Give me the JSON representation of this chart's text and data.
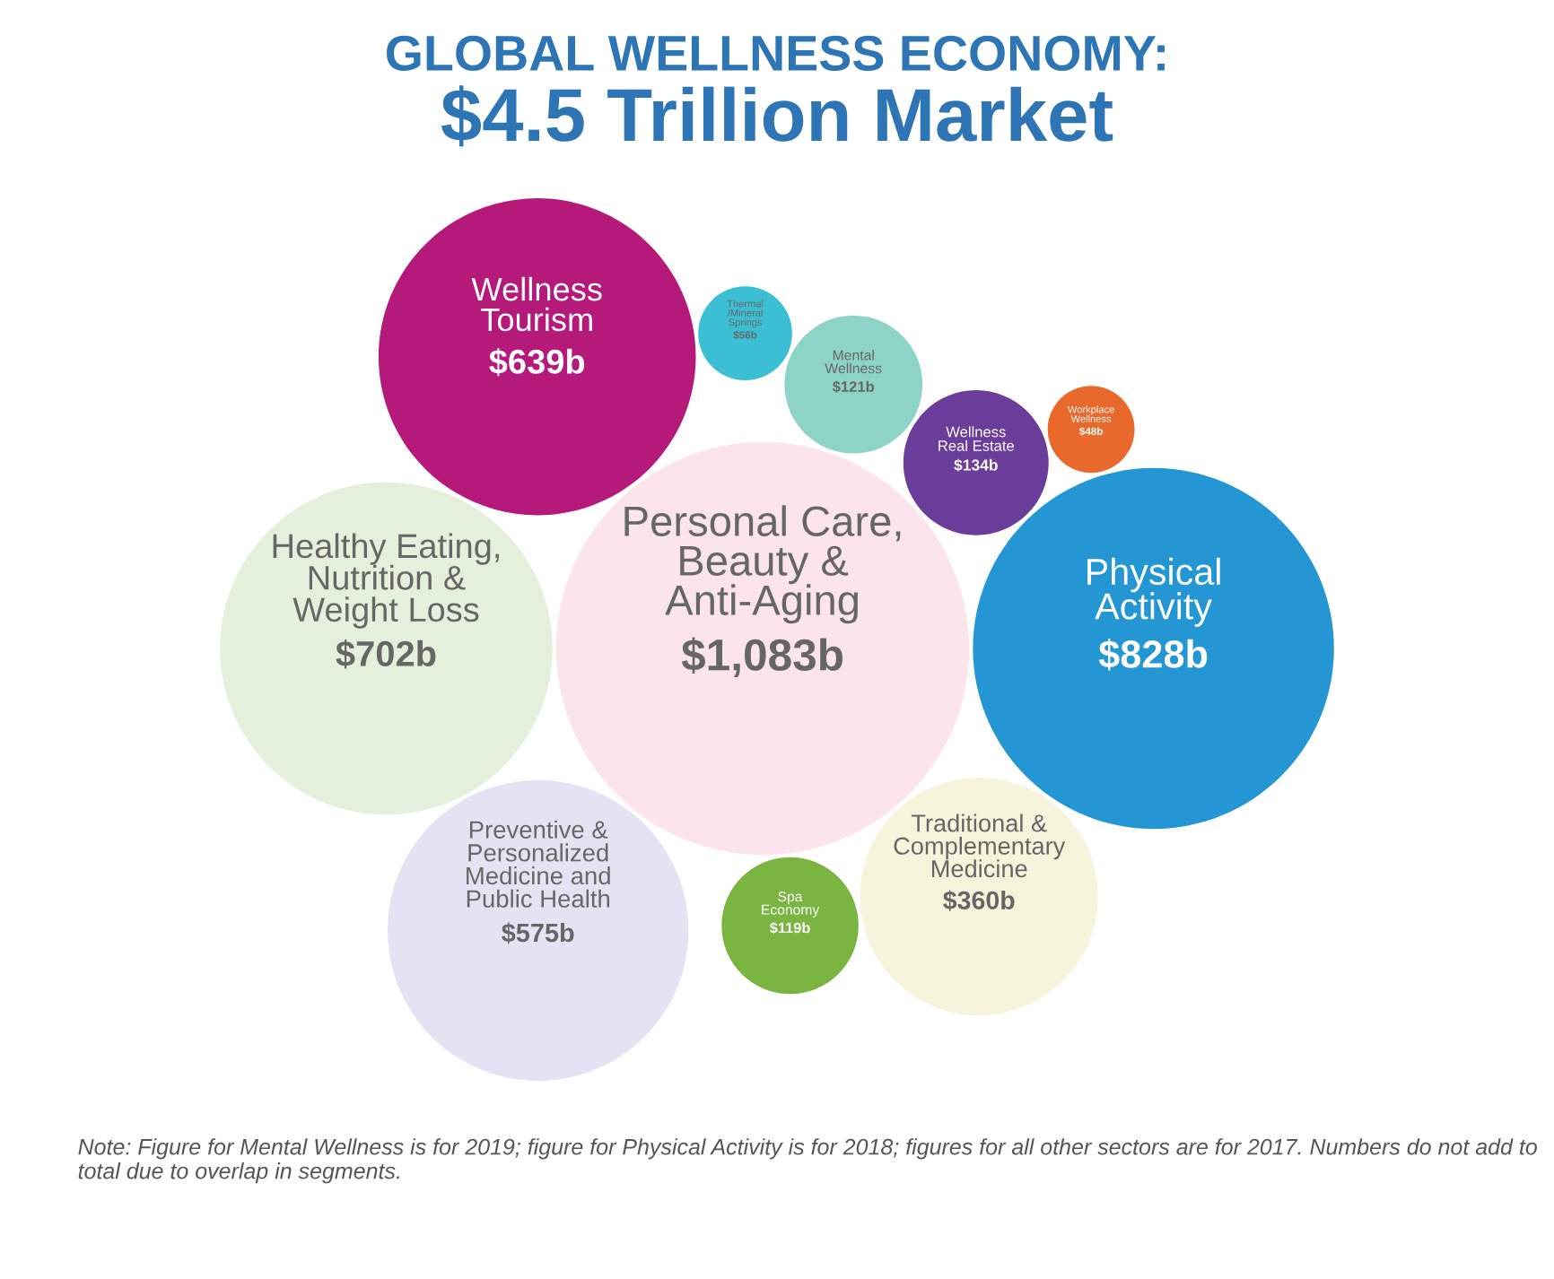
{
  "chart_data": {
    "type": "other",
    "title": "GLOBAL WELLNESS ECONOMY:",
    "subtitle": "$4.5 Trillion Market",
    "categories": [
      "Mental\nWellness",
      "Traditional &\nComplementary\nMedicine",
      "Wellness\nReal Estate",
      "Wellness\nTourism",
      "Personal Care,\nBeauty &\nAnti-Aging",
      "Preventive &\nPersonalized\nMedicine and\nPublic Health",
      "Workplace\nWellness",
      "Thermal\n/Mineral\nSprings",
      "Healthy Eating,\nNutrition &\nWeight Loss",
      "Physical\nActivity",
      "Spa\nEconomy"
    ],
    "values": [
      121,
      360,
      134,
      639,
      1083,
      575,
      48,
      56,
      702,
      828,
      119
    ],
    "value_labels": [
      "$121b",
      "$360b",
      "$134b",
      "$639b",
      "$1,083b",
      "$575b",
      "$48b",
      "$56b",
      "$702b",
      "$828b",
      "$119b"
    ],
    "colors": [
      "#8ed3c7",
      "#f7f4dc",
      "#6a3d9a",
      "#b5197a",
      "#fce4ec",
      "#e3e3f3",
      "#e8692b",
      "#3bbfd4",
      "#e4efdc",
      "#2396d3",
      "#7ab441"
    ],
    "annotations": [
      "Note: Figure for Mental Wellness is for 2019; figure for Physical Activity is for 2018; figures for all other sectors are for 2017. Numbers do not add to total due to overlap in segments."
    ]
  }
}
